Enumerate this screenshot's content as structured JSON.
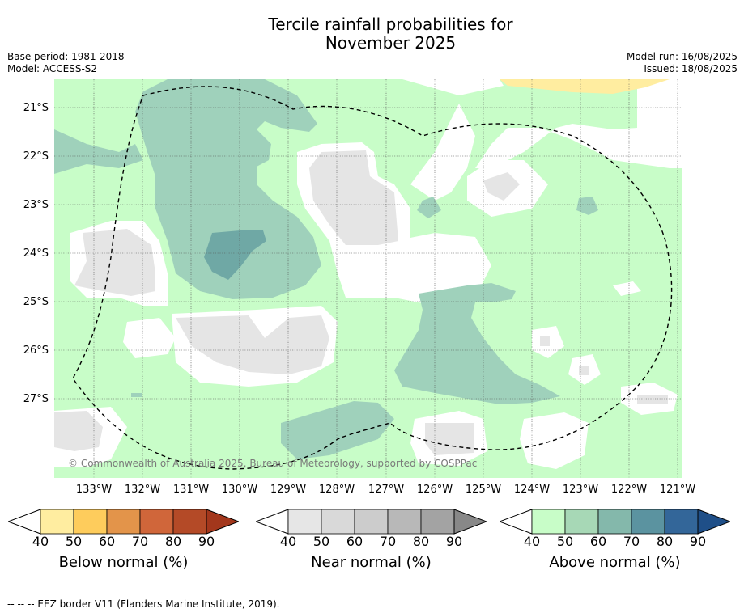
{
  "header": {
    "title_line1": "Tercile rainfall probabilities for",
    "title_line2": "November 2025",
    "base_period": "Base period: 1981-2018",
    "model": "Model: ACCESS-S2",
    "model_run": "Model run: 16/08/2025",
    "issued": "Issued: 18/08/2025"
  },
  "map": {
    "latitude_labels": [
      "21°S",
      "22°S",
      "23°S",
      "24°S",
      "25°S",
      "26°S",
      "27°S"
    ],
    "longitude_labels": [
      "133°W",
      "132°W",
      "131°W",
      "130°W",
      "129°W",
      "128°W",
      "127°W",
      "126°W",
      "125°W",
      "124°W",
      "123°W",
      "122°W",
      "121°W"
    ],
    "copyright": "© Commonwealth of Australia 2025, Bureau of Meteorology, supported by COSPPac",
    "colors": {
      "above_40": "#c8fdc8",
      "above_50": "#9fd1bb",
      "above_60": "#6fa8a5",
      "near_40": "#e5e5e5",
      "below_40": "#ffeda0",
      "no_signal": "#ffffff"
    }
  },
  "legends": [
    {
      "title": "Below normal (%)",
      "ticks": [
        "40",
        "50",
        "60",
        "70",
        "80",
        "90"
      ],
      "colors": [
        "#ffeda0",
        "#fecc5c",
        "#e3944a",
        "#d0663a",
        "#b44a27",
        "#a3371c"
      ]
    },
    {
      "title": "Near normal (%)",
      "ticks": [
        "40",
        "50",
        "60",
        "70",
        "80",
        "90"
      ],
      "colors": [
        "#e6e6e6",
        "#d9d9d9",
        "#cccccc",
        "#b8b8b8",
        "#a3a3a3",
        "#888888"
      ]
    },
    {
      "title": "Above normal (%)",
      "ticks": [
        "40",
        "50",
        "60",
        "70",
        "80",
        "90"
      ],
      "colors": [
        "#c8fdc8",
        "#a7d8b6",
        "#84b8ab",
        "#5b93a0",
        "#336699",
        "#1f4f88"
      ]
    }
  ],
  "footer": {
    "eez_line": "--  --  -- EEZ border V11 (Flanders Marine Institute, 2019)."
  }
}
